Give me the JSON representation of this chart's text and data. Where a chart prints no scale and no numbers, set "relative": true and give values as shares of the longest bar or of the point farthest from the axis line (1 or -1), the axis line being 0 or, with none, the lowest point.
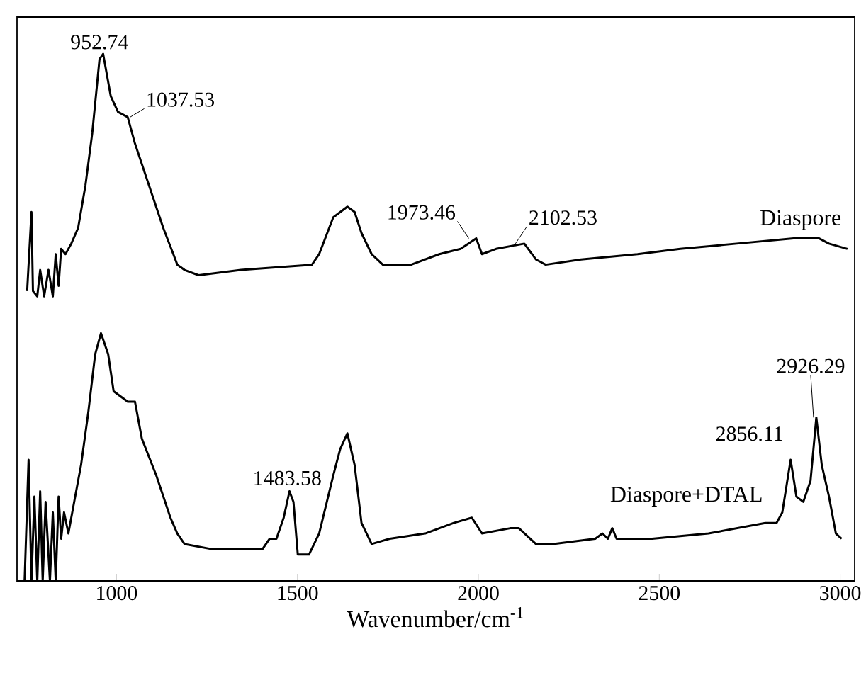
{
  "chart_data": {
    "type": "line",
    "relative": true,
    "xlabel": "Wavenumber/cm$^{-1}$",
    "xlim": [
      725,
      3040
    ],
    "xticks": [
      1000,
      1500,
      2000,
      2500,
      3000
    ],
    "series": [
      {
        "name": "Diaspore",
        "color": "#000000",
        "x": [
          753,
          765,
          769,
          781,
          789,
          800,
          812,
          824,
          832,
          840,
          847,
          859,
          875,
          894,
          914,
          933,
          953,
          963,
          984,
          1004,
          1031,
          1051,
          1090,
          1129,
          1157,
          1168,
          1188,
          1227,
          1344,
          1540,
          1560,
          1599,
          1638,
          1658,
          1677,
          1705,
          1736,
          1814,
          1892,
          1951,
          1994,
          2010,
          2049,
          2127,
          2159,
          2186,
          2284,
          2440,
          2558,
          2714,
          2871,
          2941,
          2969,
          3020
        ],
        "values": [
          0.55,
          0.7,
          0.55,
          0.54,
          0.59,
          0.54,
          0.59,
          0.54,
          0.62,
          0.56,
          0.63,
          0.62,
          0.64,
          0.67,
          0.75,
          0.85,
          0.99,
          1.0,
          0.92,
          0.89,
          0.88,
          0.83,
          0.75,
          0.67,
          0.62,
          0.6,
          0.59,
          0.58,
          0.59,
          0.6,
          0.62,
          0.69,
          0.71,
          0.7,
          0.66,
          0.62,
          0.6,
          0.6,
          0.62,
          0.63,
          0.65,
          0.62,
          0.63,
          0.64,
          0.61,
          0.6,
          0.61,
          0.62,
          0.63,
          0.64,
          0.65,
          0.65,
          0.64,
          0.63
        ]
      },
      {
        "name": "Diaspore+DTAL",
        "color": "#000000",
        "x": [
          746,
          757,
          765,
          773,
          781,
          789,
          796,
          804,
          816,
          824,
          832,
          840,
          847,
          855,
          867,
          883,
          902,
          922,
          941,
          957,
          977,
          992,
          1031,
          1051,
          1070,
          1110,
          1149,
          1168,
          1188,
          1266,
          1403,
          1423,
          1442,
          1462,
          1478,
          1489,
          1501,
          1532,
          1560,
          1599,
          1618,
          1638,
          1658,
          1677,
          1705,
          1755,
          1853,
          1932,
          1982,
          2010,
          2088,
          2112,
          2159,
          2206,
          2323,
          2343,
          2358,
          2370,
          2382,
          2480,
          2636,
          2793,
          2824,
          2840,
          2863,
          2879,
          2898,
          2918,
          2934,
          2949,
          2969,
          2988,
          3004
        ],
        "values": [
          0,
          0.23,
          0,
          0.16,
          0,
          0.17,
          0,
          0.15,
          0,
          0.13,
          0,
          0.16,
          0.08,
          0.13,
          0.09,
          0.15,
          0.22,
          0.32,
          0.43,
          0.47,
          0.43,
          0.36,
          0.34,
          0.34,
          0.27,
          0.2,
          0.12,
          0.09,
          0.07,
          0.06,
          0.06,
          0.08,
          0.08,
          0.12,
          0.17,
          0.15,
          0.05,
          0.05,
          0.09,
          0.2,
          0.25,
          0.28,
          0.22,
          0.11,
          0.07,
          0.08,
          0.09,
          0.11,
          0.12,
          0.09,
          0.1,
          0.1,
          0.07,
          0.07,
          0.08,
          0.09,
          0.08,
          0.1,
          0.08,
          0.08,
          0.09,
          0.11,
          0.11,
          0.13,
          0.23,
          0.16,
          0.15,
          0.19,
          0.31,
          0.22,
          0.16,
          0.09,
          0.08
        ]
      }
    ],
    "annotations": [
      {
        "text": "952.74",
        "x": 952.74,
        "y": 1.0
      },
      {
        "text": "1037.53",
        "x": 1037.53,
        "y": 0.88
      },
      {
        "text": "1973.46",
        "x": 1973.46,
        "y": 0.65
      },
      {
        "text": "2102.53",
        "x": 2102.53,
        "y": 0.64
      },
      {
        "text": "1483.58",
        "x": 1483.58,
        "y": 0.17
      },
      {
        "text": "2856.11",
        "x": 2856.11,
        "y": 0.23
      },
      {
        "text": "2926.29",
        "x": 2926.29,
        "y": 0.31
      }
    ]
  }
}
